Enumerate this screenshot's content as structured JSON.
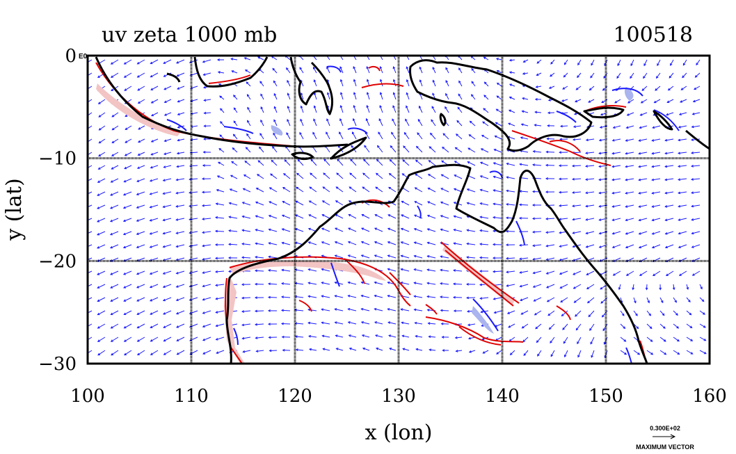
{
  "title": {
    "left": "uv zeta 1000 mb",
    "right": "100518"
  },
  "axes": {
    "xlabel": "x (lon)",
    "ylabel": "y (lat)",
    "xlim": [
      100,
      160
    ],
    "ylim": [
      -30,
      0
    ],
    "xticks": [
      "100",
      "110",
      "120",
      "130",
      "140",
      "150",
      "160"
    ],
    "yticks": [
      "0",
      "−10",
      "−20",
      "−30"
    ],
    "y_top_suffix": "E0",
    "grid": true
  },
  "legend": {
    "vector_value": "0.300E+02",
    "vector_label": "MAXIMUM VECTOR"
  },
  "colors": {
    "coastline": "#000000",
    "positive_vorticity": "#e00000",
    "negative_vorticity": "#1a1aff",
    "vectors": "#1a1aff",
    "positive_fill": "#f3c4c4",
    "negative_fill": "#aab4ee"
  },
  "map_layers": [
    "wind-vectors",
    "vorticity-contours-positive",
    "vorticity-contours-negative",
    "coastline",
    "lat-lon-grid"
  ]
}
